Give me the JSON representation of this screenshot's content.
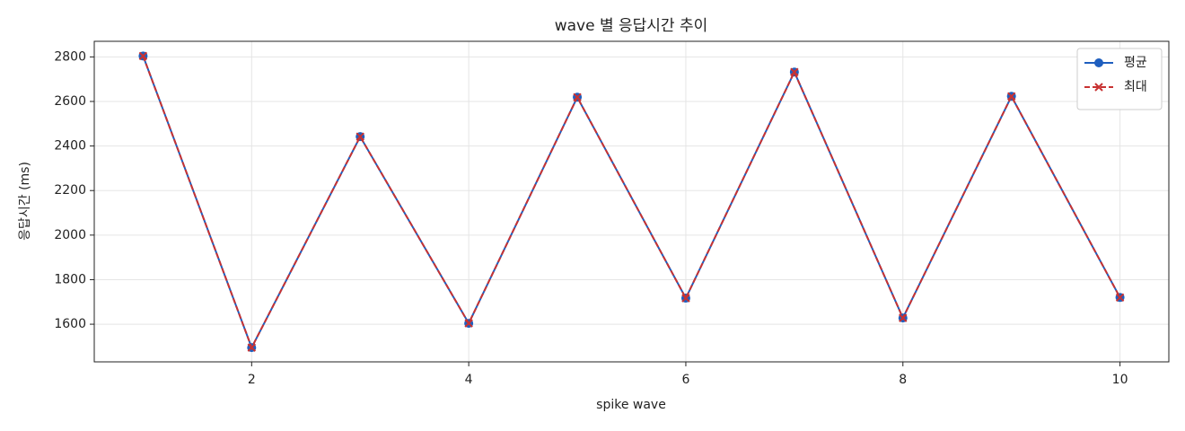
{
  "chart_data": {
    "type": "line",
    "title": "wave 별 응답시간 추이",
    "xlabel": "spike wave",
    "ylabel": "응답시간 (ms)",
    "x": [
      1,
      2,
      3,
      4,
      5,
      6,
      7,
      8,
      9,
      10
    ],
    "series": [
      {
        "name": "평균",
        "color": "#1f5fbf",
        "marker": "o",
        "linestyle": "solid",
        "values": [
          2804,
          1495,
          2442,
          1604,
          2619,
          1717,
          2732,
          1628,
          2623,
          1720
        ]
      },
      {
        "name": "최대",
        "color": "#c83232",
        "marker": "x",
        "linestyle": "dashed",
        "values": [
          2804,
          1495,
          2442,
          1604,
          2619,
          1717,
          2732,
          1628,
          2623,
          1720
        ]
      }
    ],
    "xlim": [
      0.55,
      10.45
    ],
    "ylim": [
      1431,
      2870
    ],
    "xticks": [
      2,
      4,
      6,
      8,
      10
    ],
    "yticks": [
      1600,
      1800,
      2000,
      2200,
      2400,
      2600,
      2800
    ],
    "grid": true,
    "legend": "upper right"
  }
}
